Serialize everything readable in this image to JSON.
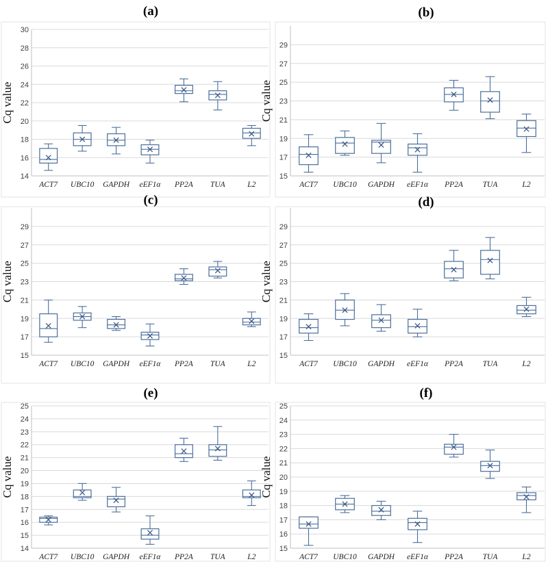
{
  "chart_data": [
    {
      "title": "(a)",
      "type": "box",
      "ylabel": "Cq value",
      "categories": [
        "ACT7",
        "UBC10",
        "GAPDH",
        "eEF1α",
        "PP2A",
        "TUA",
        "L2"
      ],
      "ylim": [
        14,
        30
      ],
      "yticks": [
        14,
        16,
        18,
        20,
        22,
        24,
        26,
        28,
        30
      ],
      "boxes": [
        {
          "min": 14.6,
          "q1": 15.4,
          "median": 15.8,
          "q3": 17.0,
          "max": 17.5,
          "mean": 16.0
        },
        {
          "min": 16.7,
          "q1": 17.3,
          "median": 18.0,
          "q3": 18.7,
          "max": 19.5,
          "mean": 18.0
        },
        {
          "min": 16.4,
          "q1": 17.3,
          "median": 17.9,
          "q3": 18.6,
          "max": 19.3,
          "mean": 17.9
        },
        {
          "min": 15.4,
          "q1": 16.3,
          "median": 16.9,
          "q3": 17.4,
          "max": 17.9,
          "mean": 16.9
        },
        {
          "min": 22.1,
          "q1": 23.0,
          "median": 23.3,
          "q3": 23.9,
          "max": 24.6,
          "mean": 23.4
        },
        {
          "min": 21.2,
          "q1": 22.3,
          "median": 22.9,
          "q3": 23.3,
          "max": 24.3,
          "mean": 22.8
        },
        {
          "min": 17.3,
          "q1": 18.1,
          "median": 18.7,
          "q3": 19.2,
          "max": 19.5,
          "mean": 18.6
        }
      ]
    },
    {
      "title": "(b)",
      "type": "box",
      "ylabel": "Cq value",
      "categories": [
        "ACT7",
        "UBC10",
        "GAPDH",
        "eEF1α",
        "PP2A",
        "TUA",
        "L2"
      ],
      "ylim": [
        15,
        31
      ],
      "yticks": [
        15,
        17,
        19,
        21,
        23,
        25,
        27,
        29
      ],
      "boxes": [
        {
          "min": 15.4,
          "q1": 16.2,
          "median": 17.3,
          "q3": 18.1,
          "max": 19.4,
          "mean": 17.2
        },
        {
          "min": 17.2,
          "q1": 17.4,
          "median": 18.5,
          "q3": 19.1,
          "max": 19.8,
          "mean": 18.4
        },
        {
          "min": 16.4,
          "q1": 17.4,
          "median": 18.6,
          "q3": 18.8,
          "max": 20.6,
          "mean": 18.3
        },
        {
          "min": 15.4,
          "q1": 17.2,
          "median": 18.0,
          "q3": 18.4,
          "max": 19.5,
          "mean": 17.8
        },
        {
          "min": 22.0,
          "q1": 22.9,
          "median": 23.7,
          "q3": 24.4,
          "max": 25.2,
          "mean": 23.7
        },
        {
          "min": 21.1,
          "q1": 21.8,
          "median": 23.0,
          "q3": 24.0,
          "max": 25.6,
          "mean": 23.1
        },
        {
          "min": 17.5,
          "q1": 19.2,
          "median": 20.1,
          "q3": 20.9,
          "max": 21.6,
          "mean": 20.0
        }
      ]
    },
    {
      "title": "(c)",
      "type": "box",
      "ylabel": "Cq value",
      "categories": [
        "ACT7",
        "UBC10",
        "GAPDH",
        "eEF1α",
        "PP2A",
        "TUA",
        "L2"
      ],
      "ylim": [
        15,
        31
      ],
      "yticks": [
        15,
        17,
        19,
        21,
        23,
        25,
        27,
        29
      ],
      "boxes": [
        {
          "min": 16.4,
          "q1": 17.0,
          "median": 17.9,
          "q3": 19.5,
          "max": 21.0,
          "mean": 18.2
        },
        {
          "min": 18.0,
          "q1": 18.8,
          "median": 19.2,
          "q3": 19.6,
          "max": 20.3,
          "mean": 19.2
        },
        {
          "min": 17.7,
          "q1": 17.9,
          "median": 18.3,
          "q3": 18.9,
          "max": 19.2,
          "mean": 18.3
        },
        {
          "min": 16.0,
          "q1": 16.7,
          "median": 17.2,
          "q3": 17.5,
          "max": 18.4,
          "mean": 17.1
        },
        {
          "min": 22.7,
          "q1": 23.1,
          "median": 23.3,
          "q3": 23.8,
          "max": 24.4,
          "mean": 23.4
        },
        {
          "min": 23.4,
          "q1": 23.6,
          "median": 24.3,
          "q3": 24.6,
          "max": 25.2,
          "mean": 24.2
        },
        {
          "min": 18.1,
          "q1": 18.3,
          "median": 18.6,
          "q3": 19.0,
          "max": 19.7,
          "mean": 18.7
        }
      ]
    },
    {
      "title": "(d)",
      "type": "box",
      "ylabel": "Cq value",
      "categories": [
        "ACT7",
        "UBC10",
        "GAPDH",
        "eEF1α",
        "PP2A",
        "TUA",
        "L2"
      ],
      "ylim": [
        15,
        31
      ],
      "yticks": [
        15,
        17,
        19,
        21,
        23,
        25,
        27,
        29
      ],
      "boxes": [
        {
          "min": 16.6,
          "q1": 17.4,
          "median": 18.0,
          "q3": 18.9,
          "max": 19.5,
          "mean": 18.1
        },
        {
          "min": 18.2,
          "q1": 18.9,
          "median": 19.9,
          "q3": 21.0,
          "max": 21.7,
          "mean": 19.9
        },
        {
          "min": 17.6,
          "q1": 18.0,
          "median": 18.8,
          "q3": 19.4,
          "max": 20.5,
          "mean": 18.8
        },
        {
          "min": 17.0,
          "q1": 17.4,
          "median": 18.1,
          "q3": 18.9,
          "max": 20.0,
          "mean": 18.2
        },
        {
          "min": 23.1,
          "q1": 23.4,
          "median": 24.4,
          "q3": 25.2,
          "max": 26.4,
          "mean": 24.3
        },
        {
          "min": 23.3,
          "q1": 23.8,
          "median": 25.4,
          "q3": 26.4,
          "max": 27.8,
          "mean": 25.3
        },
        {
          "min": 19.2,
          "q1": 19.5,
          "median": 19.9,
          "q3": 20.4,
          "max": 21.3,
          "mean": 20.0
        }
      ]
    },
    {
      "title": "(e)",
      "type": "box",
      "ylabel": "Cq value",
      "categories": [
        "ACT7",
        "UBC10",
        "GAPDH",
        "eEF1α",
        "PP2A",
        "TUA",
        "L2"
      ],
      "ylim": [
        14,
        25
      ],
      "yticks": [
        14,
        15,
        16,
        17,
        18,
        19,
        20,
        21,
        22,
        23,
        24,
        25
      ],
      "boxes": [
        {
          "min": 15.8,
          "q1": 16.0,
          "median": 16.3,
          "q3": 16.4,
          "max": 16.5,
          "mean": 16.2
        },
        {
          "min": 17.7,
          "q1": 17.9,
          "median": 18.0,
          "q3": 18.5,
          "max": 19.0,
          "mean": 18.3
        },
        {
          "min": 16.8,
          "q1": 17.2,
          "median": 17.8,
          "q3": 18.0,
          "max": 18.7,
          "mean": 17.7
        },
        {
          "min": 14.3,
          "q1": 14.7,
          "median": 15.0,
          "q3": 15.5,
          "max": 16.5,
          "mean": 15.2
        },
        {
          "min": 20.7,
          "q1": 21.0,
          "median": 21.3,
          "q3": 22.0,
          "max": 22.5,
          "mean": 21.5
        },
        {
          "min": 20.8,
          "q1": 21.1,
          "median": 21.6,
          "q3": 22.0,
          "max": 23.4,
          "mean": 21.7
        },
        {
          "min": 17.3,
          "q1": 17.9,
          "median": 18.0,
          "q3": 18.5,
          "max": 19.2,
          "mean": 18.1
        }
      ]
    },
    {
      "title": "(f)",
      "type": "box",
      "ylabel": "Cq value",
      "categories": [
        "ACT7",
        "UBC10",
        "GAPDH",
        "eEF1α",
        "PP2A",
        "TUA",
        "L2"
      ],
      "ylim": [
        15,
        25
      ],
      "yticks": [
        15,
        16,
        17,
        18,
        19,
        20,
        21,
        22,
        23,
        24,
        25
      ],
      "boxes": [
        {
          "min": 15.2,
          "q1": 16.4,
          "median": 16.7,
          "q3": 17.2,
          "max": 17.2,
          "mean": 16.7
        },
        {
          "min": 17.5,
          "q1": 17.7,
          "median": 18.1,
          "q3": 18.5,
          "max": 18.7,
          "mean": 18.1
        },
        {
          "min": 17.0,
          "q1": 17.3,
          "median": 17.6,
          "q3": 18.0,
          "max": 18.3,
          "mean": 17.7
        },
        {
          "min": 15.4,
          "q1": 16.3,
          "median": 16.8,
          "q3": 17.1,
          "max": 17.6,
          "mean": 16.7
        },
        {
          "min": 21.4,
          "q1": 21.6,
          "median": 22.1,
          "q3": 22.3,
          "max": 23.0,
          "mean": 22.1
        },
        {
          "min": 19.9,
          "q1": 20.4,
          "median": 20.8,
          "q3": 21.1,
          "max": 21.9,
          "mean": 20.8
        },
        {
          "min": 17.5,
          "q1": 18.4,
          "median": 18.7,
          "q3": 18.9,
          "max": 19.3,
          "mean": 18.6
        }
      ]
    }
  ]
}
